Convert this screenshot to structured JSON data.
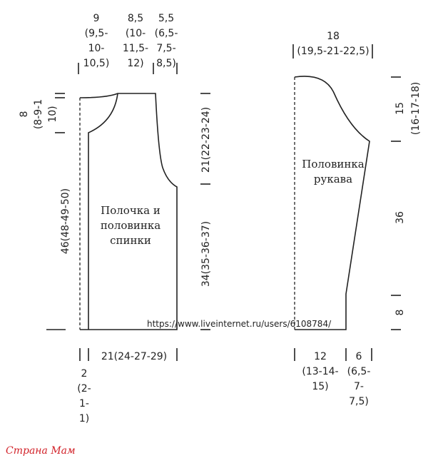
{
  "front": {
    "top_widths": [
      [
        "9",
        "(9,5-",
        "10-",
        "10,5)"
      ],
      [
        "8,5",
        "(10-",
        "11,5-",
        "12)"
      ],
      [
        "5,5",
        "(6,5-",
        "7,5-",
        "8,5)"
      ]
    ],
    "neck_depth": [
      "8",
      "(8-9-1",
      "10)"
    ],
    "total_height": "46(48-49-50)",
    "armhole_height": "21(22-23-24)",
    "side_height": "34(35-36-37)",
    "label": [
      "Полочка и",
      "половинка",
      "спинки"
    ],
    "bottom_width": "21(24-27-29)",
    "edge_width": [
      "2",
      "(2-",
      "1-",
      "1)"
    ]
  },
  "sleeve": {
    "top_width": [
      "18",
      "(19,5-21-22,5)"
    ],
    "cap_height": [
      "15",
      "(16-17-18)"
    ],
    "length": "36",
    "cuff_height": "8",
    "label": [
      "Половинка",
      "рукава"
    ],
    "bottom_width": [
      "12",
      "(13-14-",
      "15)"
    ],
    "bottom_edge": [
      "6",
      "(6,5-",
      "7-",
      "7,5)"
    ]
  },
  "url": "https://www.liveinternet.ru/users/6108784/",
  "logo": "Страна Мам"
}
